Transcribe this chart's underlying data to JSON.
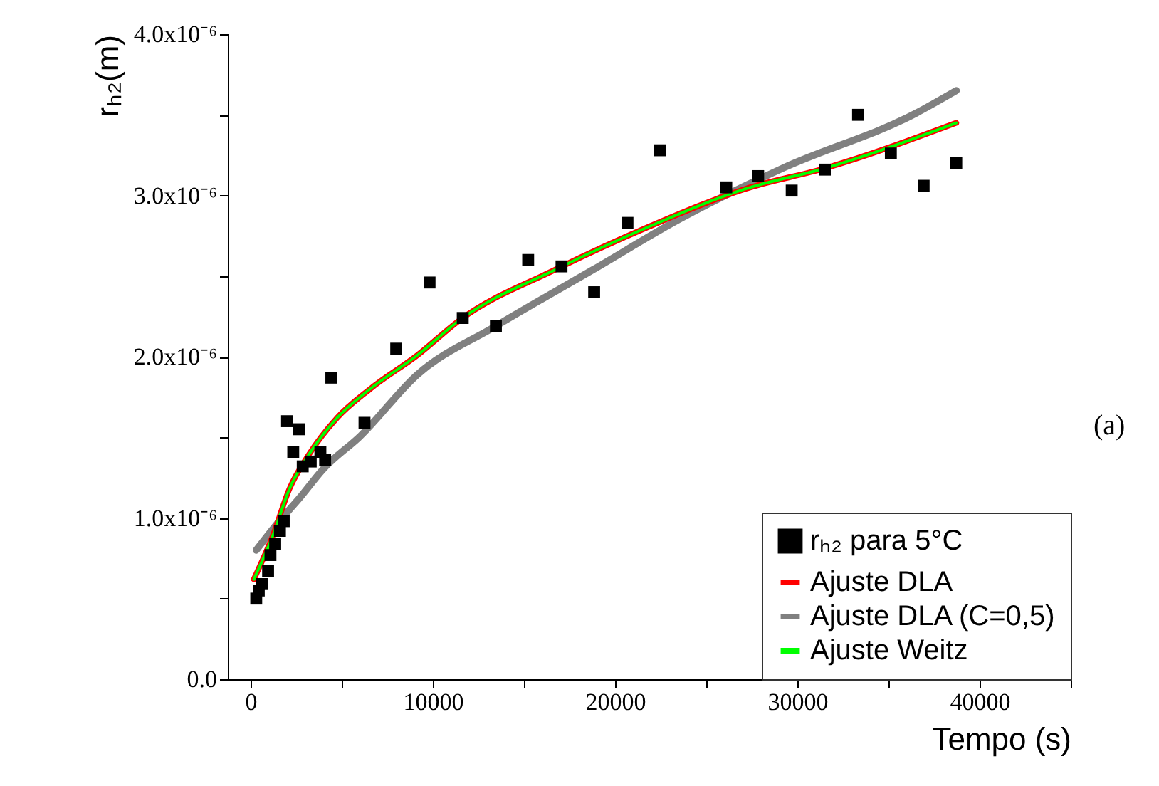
{
  "chart_data": {
    "type": "scatter",
    "xlabel": "Tempo (s)",
    "ylabel": "rₕ₂(m)",
    "annotations": [
      "(a)"
    ],
    "xlim": [
      -1250,
      45000
    ],
    "ylim": [
      0,
      4e-06
    ],
    "xticks": [
      0,
      {
        "value": 5000,
        "label": null
      },
      10000,
      {
        "value": 15000,
        "label": null
      },
      20000,
      {
        "value": 25000,
        "label": null
      },
      30000,
      {
        "value": 35000,
        "label": null
      },
      40000,
      {
        "value": 45000,
        "label": null
      }
    ],
    "yticks": [
      {
        "value": 0,
        "label": "0.0"
      },
      {
        "value": 5e-07,
        "label": null
      },
      {
        "value": 1e-06,
        "label": "1.0x10⁻⁶"
      },
      {
        "value": 1.5e-06,
        "label": null
      },
      {
        "value": 2e-06,
        "label": "2.0x10⁻⁶"
      },
      {
        "value": 2.5e-06,
        "label": null
      },
      {
        "value": 3e-06,
        "label": "3.0x10⁻⁶"
      },
      {
        "value": 3.5e-06,
        "label": null
      },
      {
        "value": 4e-06,
        "label": "4.0x10⁻⁶"
      }
    ],
    "legend": "bottom right",
    "grid": false,
    "series": [
      {
        "name": "rₕ₂ para 5°C",
        "marker": "square",
        "color": "#000000",
        "x": [
          310,
          450,
          625,
          960,
          1090,
          1350,
          1610,
          1820,
          2000,
          2650,
          2340,
          2860,
          3300,
          3830,
          4090,
          4430,
          6250,
          7990,
          9820,
          11640,
          13460,
          15230,
          17060,
          18850,
          20680,
          22460,
          26100,
          27850,
          29690,
          31510,
          33330,
          35130,
          36930,
          38720
        ],
        "values": [
          5e-07,
          5.5e-07,
          5.9e-07,
          6.7e-07,
          7.7e-07,
          8.4e-07,
          9.2e-07,
          9.8e-07,
          1.6e-06,
          1.55e-06,
          1.41e-06,
          1.32e-06,
          1.35e-06,
          1.41e-06,
          1.36e-06,
          1.87e-06,
          1.59e-06,
          2.05e-06,
          2.46e-06,
          2.24e-06,
          2.19e-06,
          2.6e-06,
          2.56e-06,
          2.4e-06,
          2.83e-06,
          3.28e-06,
          3.05e-06,
          3.12e-06,
          3.03e-06,
          3.16e-06,
          3.5e-06,
          3.26e-06,
          3.06e-06,
          3.2e-06
        ]
      },
      {
        "name": "Ajuste DLA",
        "type": "line",
        "color": "#ff0000",
        "x": [
          180,
          1220,
          2130,
          3180,
          4740,
          6560,
          9160,
          11510,
          16720,
          21930,
          27130,
          31560,
          38720
        ],
        "values": [
          6.2e-07,
          8.9e-07,
          1.18e-06,
          1.39e-06,
          1.62e-06,
          1.8e-06,
          2.01e-06,
          2.23e-06,
          2.54e-06,
          2.81e-06,
          3.04e-06,
          3.17e-06,
          3.45e-06
        ]
      },
      {
        "name": "Ajuste DLA (C=0,5)",
        "type": "line",
        "color": "#808080",
        "x": [
          310,
          1350,
          2660,
          3960,
          6040,
          9160,
          13460,
          18800,
          23490,
          29220,
          36510,
          38720
        ],
        "values": [
          8e-07,
          9.5e-07,
          1.12e-06,
          1.3e-06,
          1.51e-06,
          1.89e-06,
          2.19e-06,
          2.54e-06,
          2.85e-06,
          3.17e-06,
          3.51e-06,
          3.65e-06
        ]
      },
      {
        "name": "Ajuste Weitz",
        "type": "line",
        "color": "#00ff00",
        "x": [
          180,
          1220,
          2130,
          3180,
          4740,
          6560,
          9160,
          11510,
          16720,
          21930,
          27130,
          31560,
          38720
        ],
        "values": [
          6.2e-07,
          8.9e-07,
          1.18e-06,
          1.39e-06,
          1.62e-06,
          1.8e-06,
          2.01e-06,
          2.23e-06,
          2.54e-06,
          2.81e-06,
          3.04e-06,
          3.17e-06,
          3.45e-06
        ]
      }
    ]
  }
}
